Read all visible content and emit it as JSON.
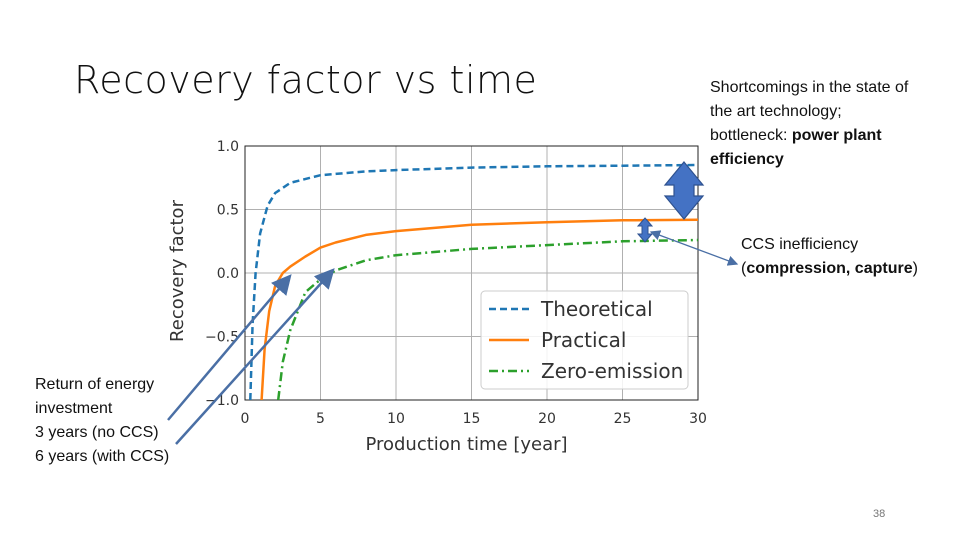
{
  "slide": {
    "title": "Recovery factor vs time",
    "page_number": "38"
  },
  "annotations": {
    "shortcomings_plain": "Shortcomings in the state of the art technology; bottleneck: ",
    "shortcomings_bold": "power plant efficiency",
    "ccs_plain": "CCS inefficiency (",
    "ccs_bold": "compression, capture",
    "ccs_close": ")",
    "return_line1": "Return of energy investment",
    "return_line2": "3 years (no CCS)",
    "return_line3": "6 years (with CCS)"
  },
  "colors": {
    "theoretical": "#1f77b4",
    "practical": "#ff7f0e",
    "zero_emission": "#2ca02c",
    "arrow_fill": "#4472c4",
    "pointer": "#4a6fa5"
  },
  "chart_data": {
    "type": "line",
    "xlabel": "Production time [year]",
    "ylabel": "Recovery factor",
    "xlim": [
      0,
      30
    ],
    "ylim": [
      -1.0,
      1.0
    ],
    "x_ticks": [
      0,
      5,
      10,
      15,
      20,
      25,
      30
    ],
    "x_tick_labels": [
      "0",
      "5",
      "10",
      "15",
      "20",
      "25",
      "30"
    ],
    "y_ticks": [
      1.0,
      0.5,
      0.0,
      -0.5,
      -1.0
    ],
    "y_tick_labels": [
      "1.0",
      "0.5",
      "0.0",
      "−0.5",
      "−1.0"
    ],
    "grid": true,
    "legend_position": "lower-right",
    "series": [
      {
        "name": "Theoretical",
        "style": "dashed",
        "x": [
          0.35,
          0.5,
          0.7,
          1.0,
          1.5,
          2,
          3,
          5,
          8,
          10,
          15,
          20,
          25,
          30
        ],
        "y": [
          -1.0,
          -0.4,
          0.0,
          0.31,
          0.53,
          0.63,
          0.71,
          0.77,
          0.8,
          0.81,
          0.83,
          0.84,
          0.845,
          0.85
        ]
      },
      {
        "name": "Practical",
        "style": "solid",
        "x": [
          1.1,
          1.3,
          1.6,
          2.0,
          2.5,
          3,
          4,
          5,
          6,
          8,
          10,
          15,
          20,
          25,
          30
        ],
        "y": [
          -1.0,
          -0.6,
          -0.3,
          -0.1,
          0.0,
          0.05,
          0.13,
          0.2,
          0.24,
          0.3,
          0.33,
          0.38,
          0.4,
          0.415,
          0.42
        ]
      },
      {
        "name": "Zero-emission",
        "style": "dashdot",
        "x": [
          2.2,
          2.5,
          3,
          3.5,
          4,
          5,
          6,
          8,
          10,
          15,
          20,
          25,
          30
        ],
        "y": [
          -1.0,
          -0.7,
          -0.45,
          -0.3,
          -0.15,
          -0.05,
          0.02,
          0.1,
          0.14,
          0.19,
          0.22,
          0.25,
          0.26
        ]
      }
    ]
  }
}
